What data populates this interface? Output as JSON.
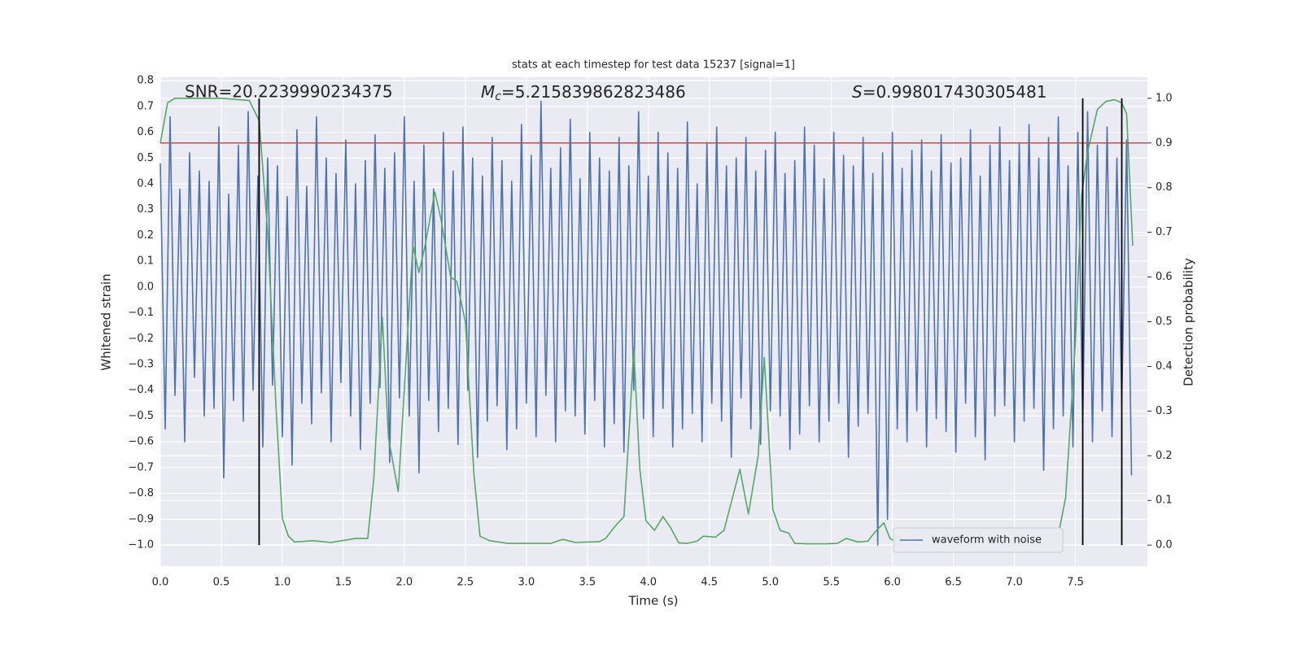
{
  "chart_data": {
    "type": "line",
    "title": "stats at each timestep for test data 15237 [signal=1]",
    "xlabel": "Time (s)",
    "ylabel": "Whitened strain",
    "y2label": "Detection probability",
    "grid": true,
    "legend": "lower right",
    "xlim": [
      0,
      8.09
    ],
    "xticks": [
      {
        "value": 0,
        "label": "0.0"
      },
      0.5,
      {
        "value": 1,
        "label": "1.0"
      },
      1.5,
      {
        "value": 2,
        "label": "2.0"
      },
      2.5,
      {
        "value": 3,
        "label": "3.0"
      },
      3.5,
      {
        "value": 4,
        "label": "4.0"
      },
      4.5,
      {
        "value": 5,
        "label": "5.0"
      },
      5.5,
      {
        "value": 6,
        "label": "6.0"
      },
      6.5,
      {
        "value": 7,
        "label": "7.0"
      },
      7.5
    ],
    "ylim": [
      -1.082,
      0.813
    ],
    "yticks": [
      {
        "value": -1,
        "label": "−1.0"
      },
      {
        "value": -0.9,
        "label": "−0.9"
      },
      {
        "value": -0.8,
        "label": "−0.8"
      },
      {
        "value": -0.7,
        "label": "−0.7"
      },
      {
        "value": -0.6,
        "label": "−0.6"
      },
      {
        "value": -0.5,
        "label": "−0.5"
      },
      {
        "value": -0.4,
        "label": "−0.4"
      },
      {
        "value": -0.3,
        "label": "−0.3"
      },
      {
        "value": -0.2,
        "label": "−0.2"
      },
      {
        "value": -0.1,
        "label": "−0.1"
      },
      {
        "value": 0,
        "label": "0.0"
      },
      0.1,
      0.2,
      0.3,
      0.4,
      0.5,
      0.6,
      0.7,
      0.8
    ],
    "y2lim": [
      -0.047,
      1.047
    ],
    "y2ticks": [
      {
        "value": 0,
        "label": "0.0"
      },
      0.1,
      0.2,
      0.3,
      0.4,
      0.5,
      0.6,
      0.7,
      0.8,
      0.9,
      {
        "value": 1,
        "label": "1.0"
      }
    ],
    "series": [
      {
        "name": "waveform with noise",
        "color": "#4c72b0",
        "x": [
          0,
          0.04,
          0.08,
          0.12,
          0.16,
          0.2,
          0.24,
          0.28,
          0.32,
          0.36,
          0.4,
          0.44,
          0.48,
          0.52,
          0.56,
          0.6,
          0.64,
          0.68,
          0.72,
          0.76,
          0.8,
          0.84,
          0.88,
          0.92,
          0.96,
          1,
          1.04,
          1.08,
          1.12,
          1.16,
          1.2,
          1.24,
          1.28,
          1.32,
          1.36,
          1.4,
          1.44,
          1.48,
          1.52,
          1.56,
          1.6,
          1.64,
          1.68,
          1.72,
          1.76,
          1.8,
          1.84,
          1.88,
          1.92,
          1.96,
          2,
          2.04,
          2.08,
          2.12,
          2.16,
          2.2,
          2.24,
          2.28,
          2.32,
          2.36,
          2.4,
          2.44,
          2.48,
          2.52,
          2.56,
          2.6,
          2.64,
          2.68,
          2.72,
          2.76,
          2.8,
          2.84,
          2.88,
          2.92,
          2.96,
          3,
          3.04,
          3.08,
          3.12,
          3.16,
          3.2,
          3.24,
          3.28,
          3.32,
          3.36,
          3.4,
          3.44,
          3.48,
          3.52,
          3.56,
          3.6,
          3.64,
          3.68,
          3.72,
          3.76,
          3.8,
          3.84,
          3.88,
          3.92,
          3.96,
          4,
          4.04,
          4.08,
          4.12,
          4.16,
          4.2,
          4.24,
          4.28,
          4.32,
          4.36,
          4.4,
          4.44,
          4.48,
          4.52,
          4.56,
          4.6,
          4.64,
          4.68,
          4.72,
          4.76,
          4.8,
          4.84,
          4.88,
          4.92,
          4.96,
          5,
          5.04,
          5.08,
          5.12,
          5.16,
          5.2,
          5.24,
          5.28,
          5.32,
          5.36,
          5.4,
          5.44,
          5.48,
          5.52,
          5.56,
          5.6,
          5.64,
          5.68,
          5.72,
          5.76,
          5.8,
          5.84,
          5.88,
          5.92,
          5.96,
          6,
          6.04,
          6.08,
          6.12,
          6.16,
          6.2,
          6.24,
          6.28,
          6.32,
          6.36,
          6.4,
          6.44,
          6.48,
          6.52,
          6.56,
          6.6,
          6.64,
          6.68,
          6.72,
          6.76,
          6.8,
          6.84,
          6.88,
          6.92,
          6.96,
          7,
          7.04,
          7.08,
          7.12,
          7.16,
          7.2,
          7.24,
          7.28,
          7.32,
          7.36,
          7.4,
          7.44,
          7.48,
          7.52,
          7.56,
          7.6,
          7.64,
          7.68,
          7.72,
          7.76,
          7.8,
          7.84,
          7.88,
          7.92,
          7.96
        ],
        "values": [
          0.48,
          -0.55,
          0.66,
          -0.42,
          0.38,
          -0.6,
          0.52,
          -0.35,
          0.45,
          -0.5,
          0.41,
          -0.47,
          0.62,
          -0.74,
          0.36,
          -0.44,
          0.55,
          -0.52,
          0.68,
          -0.4,
          0.43,
          -0.62,
          0.5,
          -0.38,
          0.47,
          -0.58,
          0.35,
          -0.69,
          0.61,
          -0.45,
          0.39,
          -0.53,
          0.66,
          -0.41,
          0.5,
          -0.6,
          0.44,
          -0.37,
          0.57,
          -0.5,
          0.4,
          -0.63,
          0.49,
          -0.45,
          0.59,
          -0.39,
          0.46,
          -0.68,
          0.52,
          -0.43,
          0.66,
          -0.5,
          0.41,
          -0.72,
          0.55,
          -0.44,
          0.38,
          -0.56,
          0.6,
          -0.47,
          0.45,
          -0.61,
          0.62,
          -0.4,
          0.5,
          -0.66,
          0.43,
          -0.52,
          0.58,
          -0.46,
          0.49,
          -0.63,
          0.41,
          -0.55,
          0.63,
          -0.45,
          0.51,
          -0.58,
          0.72,
          -0.42,
          0.46,
          -0.6,
          0.54,
          -0.48,
          0.65,
          -0.5,
          0.42,
          -0.57,
          0.6,
          -0.44,
          0.5,
          -0.62,
          0.45,
          -0.53,
          0.58,
          -0.64,
          0.47,
          -0.4,
          0.68,
          -0.51,
          0.43,
          -0.58,
          0.6,
          -0.47,
          0.52,
          -0.62,
          0.46,
          -0.55,
          0.64,
          -0.49,
          0.4,
          -0.6,
          0.56,
          -0.45,
          0.62,
          -0.52,
          0.47,
          -0.66,
          0.5,
          -0.43,
          0.58,
          -0.55,
          0.45,
          -0.61,
          0.53,
          -0.48,
          0.6,
          -0.5,
          0.44,
          -0.63,
          0.49,
          -0.57,
          0.62,
          -0.46,
          0.55,
          -0.6,
          0.42,
          -0.52,
          0.6,
          -0.45,
          0.51,
          -0.66,
          0.47,
          -0.54,
          0.58,
          -0.49,
          0.44,
          -1.0,
          0.52,
          -0.9,
          0.6,
          -0.55,
          0.46,
          -0.6,
          0.53,
          -0.48,
          0.57,
          -0.62,
          0.45,
          -0.51,
          0.59,
          -0.56,
          0.48,
          -0.64,
          0.5,
          -0.45,
          0.61,
          -0.58,
          0.43,
          -0.67,
          0.55,
          -0.5,
          0.62,
          -0.46,
          0.49,
          -0.6,
          0.56,
          -0.52,
          0.63,
          -0.47,
          0.5,
          -0.71,
          0.58,
          -0.55,
          0.66,
          -0.5,
          0.47,
          -0.62,
          0.6,
          -0.53,
          0.68,
          -0.6,
          0.55,
          -0.48,
          0.62,
          -0.58,
          0.5,
          -0.45,
          0.57,
          -0.73
        ]
      },
      {
        "color": "#55a868",
        "axis": "y2",
        "x": [
          0,
          0.06,
          0.12,
          0.5,
          0.73,
          0.81,
          0.88,
          0.95,
          1.0,
          1.05,
          1.1,
          1.25,
          1.4,
          1.6,
          1.7,
          1.75,
          1.82,
          1.87,
          1.95,
          2.0,
          2.07,
          2.12,
          2.17,
          2.25,
          2.3,
          2.38,
          2.43,
          2.5,
          2.57,
          2.62,
          2.7,
          2.85,
          3.0,
          3.2,
          3.3,
          3.4,
          3.6,
          3.65,
          3.72,
          3.8,
          3.85,
          3.88,
          3.93,
          3.98,
          4.05,
          4.12,
          4.18,
          4.25,
          4.32,
          4.4,
          4.45,
          4.55,
          4.62,
          4.75,
          4.82,
          4.9,
          4.95,
          5.02,
          5.08,
          5.15,
          5.2,
          5.3,
          5.45,
          5.55,
          5.62,
          5.72,
          5.8,
          5.85,
          5.93,
          5.98,
          6.05,
          6.3,
          6.5,
          6.7,
          6.75,
          6.9,
          7.2,
          7.3,
          7.35,
          7.42,
          7.5,
          7.55,
          7.6,
          7.68,
          7.75,
          7.82,
          7.88,
          7.92,
          7.97
        ],
        "values": [
          0.9,
          0.99,
          1.0,
          1.0,
          0.995,
          0.95,
          0.7,
          0.3,
          0.06,
          0.02,
          0.007,
          0.01,
          0.006,
          0.015,
          0.015,
          0.15,
          0.51,
          0.24,
          0.12,
          0.35,
          0.67,
          0.61,
          0.67,
          0.79,
          0.73,
          0.6,
          0.59,
          0.5,
          0.16,
          0.02,
          0.01,
          0.004,
          0.004,
          0.004,
          0.013,
          0.006,
          0.008,
          0.015,
          0.04,
          0.064,
          0.29,
          0.44,
          0.17,
          0.055,
          0.033,
          0.064,
          0.04,
          0.005,
          0.004,
          0.009,
          0.02,
          0.018,
          0.033,
          0.17,
          0.07,
          0.2,
          0.42,
          0.08,
          0.033,
          0.027,
          0.004,
          0.003,
          0.003,
          0.004,
          0.015,
          0.007,
          0.009,
          0.027,
          0.05,
          0.015,
          0.004,
          0.004,
          0.004,
          0.003,
          0.006,
          0.004,
          0.003,
          0.003,
          0.01,
          0.106,
          0.455,
          0.78,
          0.88,
          0.975,
          0.993,
          0.997,
          0.99,
          0.965,
          0.67
        ]
      }
    ],
    "hline": {
      "axis": "y2",
      "value": 0.9,
      "color": "#c44e52"
    },
    "vlines": {
      "axis": "y2",
      "x": [
        0.81,
        7.56,
        7.88
      ],
      "ymin": 0,
      "ymax": 1,
      "color": "#000000"
    },
    "annotations": [
      {
        "text": "SNR=20.2239990234375"
      },
      {
        "symbol": "M",
        "subscript": "c",
        "text": "=5.215839862823486"
      },
      {
        "symbol": "S",
        "text": "=0.998017430305481"
      }
    ]
  }
}
